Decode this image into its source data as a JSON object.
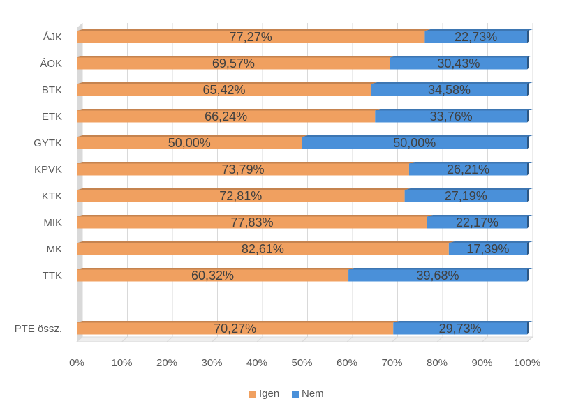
{
  "chart_data": {
    "type": "bar",
    "orientation": "horizontal",
    "stacked": "100%",
    "style": "3d",
    "categories": [
      "ÁJK",
      "ÁOK",
      "BTK",
      "ETK",
      "GYTK",
      "KPVK",
      "KTK",
      "MIK",
      "MK",
      "TTK",
      "",
      "PTE össz."
    ],
    "series": [
      {
        "name": "Igen",
        "color": "#F0A060",
        "values": [
          77.27,
          69.57,
          65.42,
          66.24,
          50.0,
          73.79,
          72.81,
          77.83,
          82.61,
          60.32,
          null,
          70.27
        ],
        "labels": [
          "77,27%",
          "69,57%",
          "65,42%",
          "66,24%",
          "50,00%",
          "73,79%",
          "72,81%",
          "77,83%",
          "82,61%",
          "60,32%",
          "",
          "70,27%"
        ]
      },
      {
        "name": "Nem",
        "color": "#4A90D9",
        "values": [
          22.73,
          30.43,
          34.58,
          33.76,
          50.0,
          26.21,
          27.19,
          22.17,
          17.39,
          39.68,
          null,
          29.73
        ],
        "labels": [
          "22,73%",
          "30,43%",
          "34,58%",
          "33,76%",
          "50,00%",
          "26,21%",
          "27,19%",
          "22,17%",
          "17,39%",
          "39,68%",
          "",
          "29,73%"
        ]
      }
    ],
    "x_ticks": [
      "0%",
      "10%",
      "20%",
      "30%",
      "40%",
      "50%",
      "60%",
      "70%",
      "80%",
      "90%",
      "100%"
    ],
    "xlim": [
      0,
      100
    ],
    "grid": "vertical",
    "legend": {
      "position": "bottom",
      "entries": [
        "Igen",
        "Nem"
      ]
    },
    "title": "",
    "xlabel": "",
    "ylabel": ""
  }
}
